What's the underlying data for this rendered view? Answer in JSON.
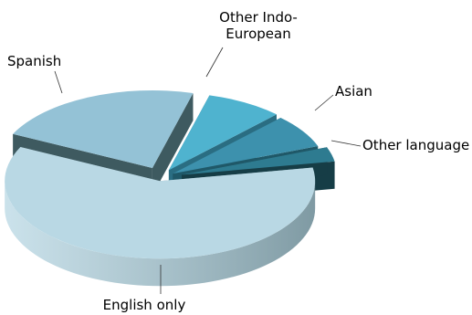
{
  "chart_data": {
    "type": "pie",
    "style": "3d-exploded",
    "slices": [
      {
        "label": "English only",
        "value": 60,
        "color": "#b9d8e4",
        "side": "#7f9aa3"
      },
      {
        "label": "Spanish",
        "value": 22,
        "color": "#94c2d6",
        "side": "#3e5a60"
      },
      {
        "label": "Other Indo-European",
        "value": 8,
        "color": "#4fb3cf",
        "side": "#2a6d82"
      },
      {
        "label": "Asian",
        "value": 7,
        "color": "#3d91ad",
        "side": "#1f5868"
      },
      {
        "label": "Other language",
        "value": 3,
        "color": "#2e7b90",
        "side": "#163d46"
      }
    ],
    "legend": "none",
    "labels": "outside-with-leader-lines"
  }
}
